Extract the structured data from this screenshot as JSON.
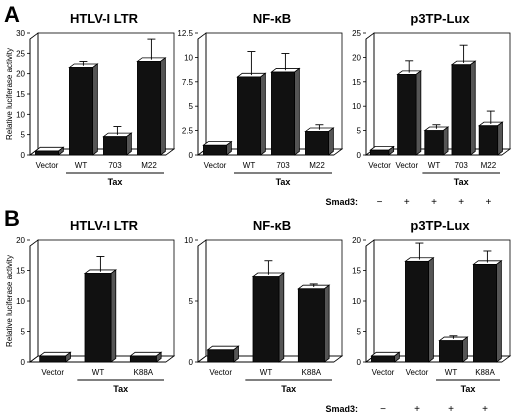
{
  "figure": {
    "panel_letters": [
      "A",
      "B"
    ],
    "ylabel": "Relative luciferase activity",
    "tax_label": "Tax",
    "smad3_label": "Smad3:"
  },
  "chart_data": [
    {
      "type": "bar",
      "row": 0,
      "col": 0,
      "title": "HTLV-I LTR",
      "ylim": [
        0,
        30
      ],
      "yticks": [
        0,
        5,
        10,
        15,
        20,
        25,
        30
      ],
      "tick_labels": [
        "0",
        "5",
        "10",
        "15",
        "20",
        "25",
        "30"
      ],
      "categories": [
        "Vector",
        "WT",
        "703",
        "M22"
      ],
      "values": [
        1.0,
        21.5,
        4.5,
        23.0
      ],
      "errors": [
        0.0,
        1.5,
        2.5,
        5.5
      ],
      "tax_group": [
        1,
        3
      ],
      "smad3": []
    },
    {
      "type": "bar",
      "row": 0,
      "col": 1,
      "title": "NF-κB",
      "ylim": [
        0,
        12.5
      ],
      "yticks": [
        0,
        2.5,
        5,
        7.5,
        10,
        12.5
      ],
      "tick_labels": [
        "0",
        "2.5",
        "5",
        "7.5",
        "10",
        "12.5"
      ],
      "categories": [
        "Vector",
        "WT",
        "703",
        "M22"
      ],
      "values": [
        1.0,
        8.0,
        8.5,
        2.4
      ],
      "errors": [
        0.0,
        2.6,
        1.9,
        0.7
      ],
      "tax_group": [
        1,
        3
      ],
      "smad3": []
    },
    {
      "type": "bar",
      "row": 0,
      "col": 2,
      "title": "p3TP-Lux",
      "ylim": [
        0,
        25
      ],
      "yticks": [
        0,
        5,
        10,
        15,
        20,
        25
      ],
      "tick_labels": [
        "0",
        "5",
        "10",
        "15",
        "20",
        "25"
      ],
      "categories": [
        "Vector",
        "Vector",
        "WT",
        "703",
        "M22"
      ],
      "values": [
        1.0,
        16.5,
        5.0,
        18.5,
        6.0
      ],
      "errors": [
        0.0,
        2.8,
        1.2,
        4.0,
        3.0
      ],
      "tax_group": [
        2,
        4
      ],
      "smad3": [
        "−",
        "+",
        "+",
        "+",
        "+"
      ]
    },
    {
      "type": "bar",
      "row": 1,
      "col": 0,
      "title": "HTLV-I LTR",
      "ylim": [
        0,
        20
      ],
      "yticks": [
        0,
        5,
        10,
        15,
        20
      ],
      "tick_labels": [
        "0",
        "5",
        "10",
        "15",
        "20"
      ],
      "categories": [
        "Vector",
        "WT",
        "K88A"
      ],
      "values": [
        1.0,
        14.5,
        1.0
      ],
      "errors": [
        0.0,
        2.8,
        0.0
      ],
      "tax_group": [
        1,
        2
      ],
      "smad3": []
    },
    {
      "type": "bar",
      "row": 1,
      "col": 1,
      "title": "NF-κB",
      "ylim": [
        0,
        10
      ],
      "yticks": [
        0,
        5,
        10
      ],
      "tick_labels": [
        "0",
        "5",
        "10"
      ],
      "categories": [
        "Vector",
        "WT",
        "K88A"
      ],
      "values": [
        1.0,
        7.0,
        6.0
      ],
      "errors": [
        0.0,
        1.3,
        0.4
      ],
      "tax_group": [
        1,
        2
      ],
      "smad3": []
    },
    {
      "type": "bar",
      "row": 1,
      "col": 2,
      "title": "p3TP-Lux",
      "ylim": [
        0,
        20
      ],
      "yticks": [
        0,
        5,
        10,
        15,
        20
      ],
      "tick_labels": [
        "0",
        "5",
        "10",
        "15",
        "20"
      ],
      "categories": [
        "Vector",
        "Vector",
        "WT",
        "K88A"
      ],
      "values": [
        1.0,
        16.5,
        3.5,
        16.0
      ],
      "errors": [
        0.0,
        3.0,
        0.8,
        2.2
      ],
      "tax_group": [
        2,
        3
      ],
      "smad3": [
        "−",
        "+",
        "+",
        "+"
      ]
    }
  ]
}
